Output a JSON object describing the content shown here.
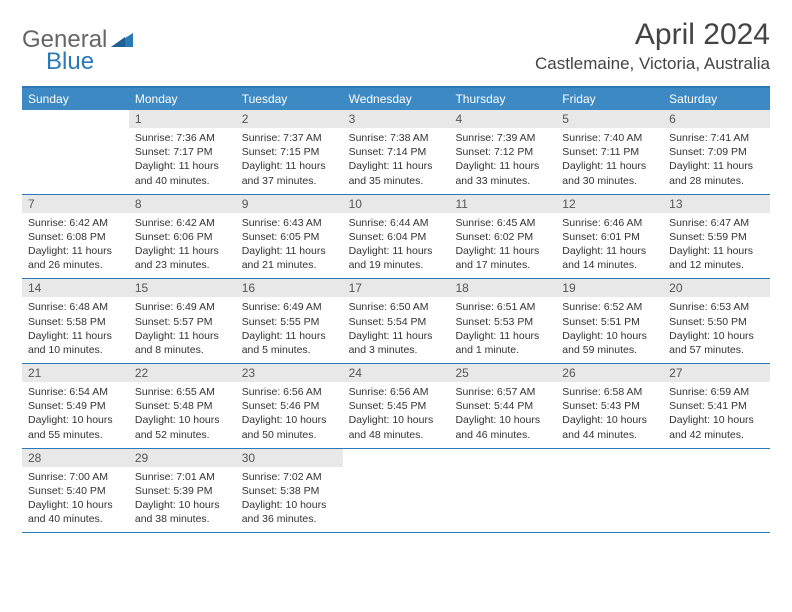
{
  "logo": {
    "part1": "General",
    "part2": "Blue"
  },
  "title": "April 2024",
  "location": "Castlemaine, Victoria, Australia",
  "colors": {
    "header_bar": "#3d89c3",
    "top_border": "#2a7ab8",
    "daynum_bg": "#e8e8e8"
  },
  "days_of_week": [
    "Sunday",
    "Monday",
    "Tuesday",
    "Wednesday",
    "Thursday",
    "Friday",
    "Saturday"
  ],
  "weeks": [
    [
      {
        "n": "",
        "sr": "",
        "ss": "",
        "dl": ""
      },
      {
        "n": "1",
        "sr": "Sunrise: 7:36 AM",
        "ss": "Sunset: 7:17 PM",
        "dl": "Daylight: 11 hours and 40 minutes."
      },
      {
        "n": "2",
        "sr": "Sunrise: 7:37 AM",
        "ss": "Sunset: 7:15 PM",
        "dl": "Daylight: 11 hours and 37 minutes."
      },
      {
        "n": "3",
        "sr": "Sunrise: 7:38 AM",
        "ss": "Sunset: 7:14 PM",
        "dl": "Daylight: 11 hours and 35 minutes."
      },
      {
        "n": "4",
        "sr": "Sunrise: 7:39 AM",
        "ss": "Sunset: 7:12 PM",
        "dl": "Daylight: 11 hours and 33 minutes."
      },
      {
        "n": "5",
        "sr": "Sunrise: 7:40 AM",
        "ss": "Sunset: 7:11 PM",
        "dl": "Daylight: 11 hours and 30 minutes."
      },
      {
        "n": "6",
        "sr": "Sunrise: 7:41 AM",
        "ss": "Sunset: 7:09 PM",
        "dl": "Daylight: 11 hours and 28 minutes."
      }
    ],
    [
      {
        "n": "7",
        "sr": "Sunrise: 6:42 AM",
        "ss": "Sunset: 6:08 PM",
        "dl": "Daylight: 11 hours and 26 minutes."
      },
      {
        "n": "8",
        "sr": "Sunrise: 6:42 AM",
        "ss": "Sunset: 6:06 PM",
        "dl": "Daylight: 11 hours and 23 minutes."
      },
      {
        "n": "9",
        "sr": "Sunrise: 6:43 AM",
        "ss": "Sunset: 6:05 PM",
        "dl": "Daylight: 11 hours and 21 minutes."
      },
      {
        "n": "10",
        "sr": "Sunrise: 6:44 AM",
        "ss": "Sunset: 6:04 PM",
        "dl": "Daylight: 11 hours and 19 minutes."
      },
      {
        "n": "11",
        "sr": "Sunrise: 6:45 AM",
        "ss": "Sunset: 6:02 PM",
        "dl": "Daylight: 11 hours and 17 minutes."
      },
      {
        "n": "12",
        "sr": "Sunrise: 6:46 AM",
        "ss": "Sunset: 6:01 PM",
        "dl": "Daylight: 11 hours and 14 minutes."
      },
      {
        "n": "13",
        "sr": "Sunrise: 6:47 AM",
        "ss": "Sunset: 5:59 PM",
        "dl": "Daylight: 11 hours and 12 minutes."
      }
    ],
    [
      {
        "n": "14",
        "sr": "Sunrise: 6:48 AM",
        "ss": "Sunset: 5:58 PM",
        "dl": "Daylight: 11 hours and 10 minutes."
      },
      {
        "n": "15",
        "sr": "Sunrise: 6:49 AM",
        "ss": "Sunset: 5:57 PM",
        "dl": "Daylight: 11 hours and 8 minutes."
      },
      {
        "n": "16",
        "sr": "Sunrise: 6:49 AM",
        "ss": "Sunset: 5:55 PM",
        "dl": "Daylight: 11 hours and 5 minutes."
      },
      {
        "n": "17",
        "sr": "Sunrise: 6:50 AM",
        "ss": "Sunset: 5:54 PM",
        "dl": "Daylight: 11 hours and 3 minutes."
      },
      {
        "n": "18",
        "sr": "Sunrise: 6:51 AM",
        "ss": "Sunset: 5:53 PM",
        "dl": "Daylight: 11 hours and 1 minute."
      },
      {
        "n": "19",
        "sr": "Sunrise: 6:52 AM",
        "ss": "Sunset: 5:51 PM",
        "dl": "Daylight: 10 hours and 59 minutes."
      },
      {
        "n": "20",
        "sr": "Sunrise: 6:53 AM",
        "ss": "Sunset: 5:50 PM",
        "dl": "Daylight: 10 hours and 57 minutes."
      }
    ],
    [
      {
        "n": "21",
        "sr": "Sunrise: 6:54 AM",
        "ss": "Sunset: 5:49 PM",
        "dl": "Daylight: 10 hours and 55 minutes."
      },
      {
        "n": "22",
        "sr": "Sunrise: 6:55 AM",
        "ss": "Sunset: 5:48 PM",
        "dl": "Daylight: 10 hours and 52 minutes."
      },
      {
        "n": "23",
        "sr": "Sunrise: 6:56 AM",
        "ss": "Sunset: 5:46 PM",
        "dl": "Daylight: 10 hours and 50 minutes."
      },
      {
        "n": "24",
        "sr": "Sunrise: 6:56 AM",
        "ss": "Sunset: 5:45 PM",
        "dl": "Daylight: 10 hours and 48 minutes."
      },
      {
        "n": "25",
        "sr": "Sunrise: 6:57 AM",
        "ss": "Sunset: 5:44 PM",
        "dl": "Daylight: 10 hours and 46 minutes."
      },
      {
        "n": "26",
        "sr": "Sunrise: 6:58 AM",
        "ss": "Sunset: 5:43 PM",
        "dl": "Daylight: 10 hours and 44 minutes."
      },
      {
        "n": "27",
        "sr": "Sunrise: 6:59 AM",
        "ss": "Sunset: 5:41 PM",
        "dl": "Daylight: 10 hours and 42 minutes."
      }
    ],
    [
      {
        "n": "28",
        "sr": "Sunrise: 7:00 AM",
        "ss": "Sunset: 5:40 PM",
        "dl": "Daylight: 10 hours and 40 minutes."
      },
      {
        "n": "29",
        "sr": "Sunrise: 7:01 AM",
        "ss": "Sunset: 5:39 PM",
        "dl": "Daylight: 10 hours and 38 minutes."
      },
      {
        "n": "30",
        "sr": "Sunrise: 7:02 AM",
        "ss": "Sunset: 5:38 PM",
        "dl": "Daylight: 10 hours and 36 minutes."
      },
      {
        "n": "",
        "sr": "",
        "ss": "",
        "dl": ""
      },
      {
        "n": "",
        "sr": "",
        "ss": "",
        "dl": ""
      },
      {
        "n": "",
        "sr": "",
        "ss": "",
        "dl": ""
      },
      {
        "n": "",
        "sr": "",
        "ss": "",
        "dl": ""
      }
    ]
  ]
}
